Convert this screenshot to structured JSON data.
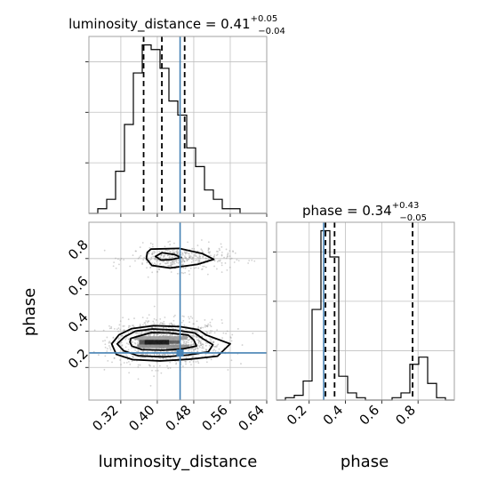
{
  "chart_data": {
    "type": "corner",
    "parameters": [
      "luminosity_distance",
      "phase"
    ],
    "titles": {
      "luminosity_distance": {
        "name": "luminosity_distance",
        "median": "0.41",
        "plus": "+0.05",
        "minus": "−0.04"
      },
      "phase": {
        "name": "phase",
        "median": "0.34",
        "plus": "+0.43",
        "minus": "−0.05"
      }
    },
    "title_sep": " = ",
    "xlabels": {
      "luminosity_distance": "luminosity_distance",
      "phase": "phase"
    },
    "ylabel": "phase",
    "ticks": {
      "luminosity_distance": [
        "0.32",
        "0.40",
        "0.48",
        "0.56",
        "0.64"
      ],
      "phase": [
        "0.2",
        "0.4",
        "0.6",
        "0.8"
      ]
    },
    "ranges": {
      "luminosity_distance": [
        0.25,
        0.64
      ],
      "phase": [
        0.02,
        1.0
      ]
    },
    "truths": {
      "luminosity_distance": 0.45,
      "phase": 0.28
    },
    "truth_color": "#4682b4",
    "quantiles": {
      "luminosity_distance": [
        0.37,
        0.41,
        0.46
      ],
      "phase": [
        0.29,
        0.34,
        0.77
      ]
    },
    "hist_luminosity_distance": {
      "bins": [
        0.25,
        0.2695,
        0.289,
        0.3085,
        0.328,
        0.3475,
        0.367,
        0.3865,
        0.406,
        0.4255,
        0.445,
        0.4645,
        0.484,
        0.5035,
        0.523,
        0.5425,
        0.562,
        0.5815,
        0.601,
        0.6205,
        0.64
      ],
      "counts": [
        0,
        1,
        3,
        9,
        19,
        30,
        36,
        35,
        31,
        24,
        21,
        14,
        10,
        5,
        3,
        1,
        1,
        0,
        0,
        0
      ]
    },
    "hist_phase": {
      "bins": [
        0.02,
        0.069,
        0.118,
        0.167,
        0.216,
        0.265,
        0.314,
        0.363,
        0.412,
        0.461,
        0.51,
        0.559,
        0.608,
        0.657,
        0.706,
        0.755,
        0.804,
        0.853,
        0.902,
        0.951,
        1.0
      ],
      "counts": [
        0,
        1,
        2,
        8,
        38,
        71,
        60,
        10,
        3,
        1,
        0,
        0,
        0,
        1,
        3,
        15,
        18,
        7,
        1,
        0
      ]
    },
    "contour_levels": [
      [
        [
          0.342,
          0.36
        ],
        [
          0.386,
          0.392
        ],
        [
          0.426,
          0.39
        ],
        [
          0.468,
          0.378
        ],
        [
          0.48,
          0.352
        ],
        [
          0.486,
          0.318
        ],
        [
          0.456,
          0.302
        ],
        [
          0.412,
          0.295
        ],
        [
          0.366,
          0.298
        ],
        [
          0.344,
          0.318
        ],
        [
          0.34,
          0.34
        ]
      ],
      [
        [
          0.328,
          0.368
        ],
        [
          0.352,
          0.4
        ],
        [
          0.39,
          0.412
        ],
        [
          0.44,
          0.406
        ],
        [
          0.482,
          0.39
        ],
        [
          0.5,
          0.358
        ],
        [
          0.522,
          0.325
        ],
        [
          0.512,
          0.286
        ],
        [
          0.466,
          0.268
        ],
        [
          0.414,
          0.258
        ],
        [
          0.358,
          0.264
        ],
        [
          0.326,
          0.292
        ],
        [
          0.312,
          0.33
        ]
      ],
      [
        [
          0.316,
          0.38
        ],
        [
          0.344,
          0.414
        ],
        [
          0.392,
          0.43
        ],
        [
          0.45,
          0.425
        ],
        [
          0.49,
          0.408
        ],
        [
          0.508,
          0.378
        ],
        [
          0.56,
          0.33
        ],
        [
          0.532,
          0.262
        ],
        [
          0.47,
          0.245
        ],
        [
          0.406,
          0.236
        ],
        [
          0.346,
          0.243
        ],
        [
          0.31,
          0.272
        ],
        [
          0.3,
          0.33
        ]
      ],
      [
        [
          0.386,
          0.852
        ],
        [
          0.448,
          0.856
        ],
        [
          0.498,
          0.828
        ],
        [
          0.524,
          0.796
        ],
        [
          0.488,
          0.768
        ],
        [
          0.428,
          0.748
        ],
        [
          0.388,
          0.762
        ],
        [
          0.376,
          0.8
        ],
        [
          0.378,
          0.834
        ]
      ],
      [
        [
          0.41,
          0.832
        ],
        [
          0.438,
          0.822
        ],
        [
          0.452,
          0.806
        ],
        [
          0.43,
          0.794
        ],
        [
          0.408,
          0.792
        ],
        [
          0.396,
          0.812
        ]
      ]
    ],
    "density_core": [
      {
        "x": [
          0.372,
          0.426
        ],
        "y": [
          0.326,
          0.352
        ],
        "shade": "#0a0a0a"
      },
      {
        "x": [
          0.36,
          0.372
        ],
        "y": [
          0.326,
          0.352
        ],
        "shade": "#4a4a4a"
      },
      {
        "x": [
          0.426,
          0.45
        ],
        "y": [
          0.33,
          0.35
        ],
        "shade": "#555555"
      },
      {
        "x": [
          0.356,
          0.47
        ],
        "y": [
          0.306,
          0.326
        ],
        "shade": "#8a8a8a"
      },
      {
        "x": [
          0.35,
          0.466
        ],
        "y": [
          0.352,
          0.372
        ],
        "shade": "#9a9a9a"
      },
      {
        "x": [
          0.42,
          0.456
        ],
        "y": [
          0.29,
          0.306
        ],
        "shade": "#a8a8a8"
      }
    ],
    "scatter_clusters": [
      {
        "cx": 0.42,
        "cy": 0.34,
        "sx": 0.06,
        "sy": 0.06,
        "n": 1100
      },
      {
        "cx": 0.45,
        "cy": 0.8,
        "sx": 0.055,
        "sy": 0.035,
        "n": 420
      }
    ],
    "grid": true
  }
}
